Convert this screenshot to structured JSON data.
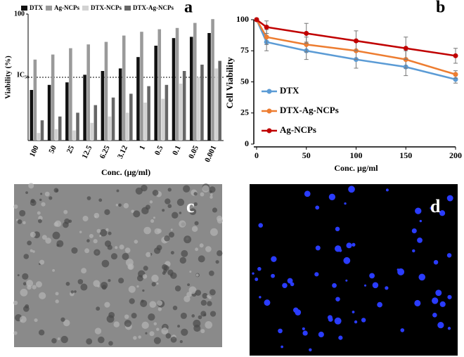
{
  "chart_data": [
    {
      "type": "bar",
      "title": "a",
      "categories": [
        "100",
        "50",
        "25",
        "12.5",
        "6.25",
        "3.12",
        "1",
        "0.5",
        "0.1",
        "0.05",
        "0.001"
      ],
      "series": [
        {
          "name": "DTX",
          "color": "#111111",
          "values": [
            40,
            44,
            46,
            52,
            55,
            57,
            66,
            75,
            81,
            82,
            85
          ]
        },
        {
          "name": "Ag-NCPs",
          "color": "#9a9a9a",
          "values": [
            64,
            68,
            73,
            76,
            78,
            83,
            86,
            88,
            89,
            93,
            96
          ]
        },
        {
          "name": "DTX-NCPs",
          "color": "#d2d2d2",
          "values": [
            6,
            9,
            8,
            14,
            19,
            22,
            30,
            33,
            45,
            50,
            57
          ]
        },
        {
          "name": "DTX-Ag-NCPs",
          "color": "#666666",
          "values": [
            16,
            19,
            22,
            28,
            34,
            37,
            43,
            44,
            55,
            60,
            63
          ]
        }
      ],
      "ylim": [
        0,
        100
      ],
      "yticks": [
        100
      ],
      "reference_line": {
        "value": 50,
        "label": "IC₅₀"
      },
      "xlabel": "Conc. (μg/ml)",
      "ylabel": "Viability (%)"
    },
    {
      "type": "line",
      "title": "b",
      "x": [
        0,
        10,
        50,
        100,
        150,
        200
      ],
      "series": [
        {
          "name": "DTX",
          "color": "#5b9bd5",
          "values": [
            100,
            82,
            75,
            68,
            62,
            52
          ],
          "errors": [
            1,
            7,
            7,
            7,
            7,
            3
          ]
        },
        {
          "name": "DTX-Ag-NCPs",
          "color": "#ed7d31",
          "values": [
            100,
            86,
            80,
            75,
            68,
            56
          ],
          "errors": [
            1,
            6,
            6,
            7,
            7,
            3
          ]
        },
        {
          "name": "Ag-NCPs",
          "color": "#c00000",
          "values": [
            100,
            94,
            89,
            83,
            77,
            71
          ],
          "errors": [
            1,
            5,
            8,
            8,
            9,
            6
          ]
        }
      ],
      "xlim": [
        0,
        200
      ],
      "xticks": [
        0,
        50,
        100,
        150,
        200
      ],
      "ylim": [
        0,
        100
      ],
      "yticks": [
        0,
        25,
        50,
        75,
        100
      ],
      "xlabel": "Conc. µg/ml",
      "ylabel": "Cell Viability"
    }
  ],
  "panels": [
    {
      "label": "c"
    },
    {
      "label": "d"
    }
  ]
}
